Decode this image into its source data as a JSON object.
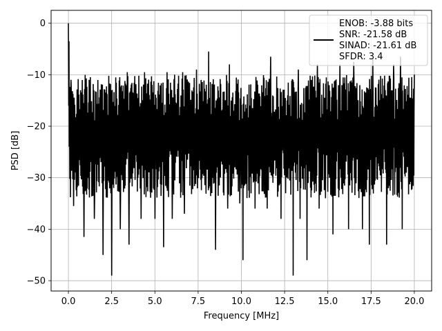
{
  "chart_data": {
    "type": "line",
    "title": "",
    "xlabel": "Frequency [MHz]",
    "ylabel": "PSD [dB]",
    "xlim": [
      -1.0,
      21.0
    ],
    "ylim": [
      -52.0,
      2.5
    ],
    "grid": true,
    "x_ticks": [
      0.0,
      2.5,
      5.0,
      7.5,
      10.0,
      12.5,
      15.0,
      17.5,
      20.0
    ],
    "x_tick_labels": [
      "0.0",
      "2.5",
      "5.0",
      "7.5",
      "10.0",
      "12.5",
      "15.0",
      "17.5",
      "20.0"
    ],
    "y_ticks": [
      0,
      -10,
      -20,
      -30,
      -40,
      -50
    ],
    "y_tick_labels": [
      "0",
      "−10",
      "−20",
      "−30",
      "−40",
      "−50"
    ],
    "legend": {
      "placement": "top-right",
      "entries": [
        "ENOB: -3.88 bits",
        "SNR: -21.58 dB",
        "SINAD: -21.61 dB",
        "SFDR: 3.4"
      ]
    },
    "series": [
      {
        "color": "#000000",
        "x_range": [
          0.0,
          20.0
        ],
        "points": 1200,
        "typical_level_db": -20,
        "upper_envelope_db": -9,
        "lower_peaks": [
          {
            "x": 0.3,
            "y": -35.5
          },
          {
            "x": 0.9,
            "y": -41.5
          },
          {
            "x": 1.5,
            "y": -38
          },
          {
            "x": 2.0,
            "y": -45
          },
          {
            "x": 2.5,
            "y": -49
          },
          {
            "x": 3.0,
            "y": -40
          },
          {
            "x": 3.5,
            "y": -43
          },
          {
            "x": 4.2,
            "y": -38
          },
          {
            "x": 5.0,
            "y": -38
          },
          {
            "x": 5.5,
            "y": -43.5
          },
          {
            "x": 6.0,
            "y": -38
          },
          {
            "x": 6.7,
            "y": -37
          },
          {
            "x": 7.4,
            "y": -35
          },
          {
            "x": 8.5,
            "y": -44
          },
          {
            "x": 9.2,
            "y": -36
          },
          {
            "x": 9.9,
            "y": -35
          },
          {
            "x": 10.1,
            "y": -46
          },
          {
            "x": 10.8,
            "y": -36
          },
          {
            "x": 11.5,
            "y": -36
          },
          {
            "x": 12.3,
            "y": -38
          },
          {
            "x": 13.0,
            "y": -49
          },
          {
            "x": 13.4,
            "y": -38
          },
          {
            "x": 13.8,
            "y": -46
          },
          {
            "x": 14.5,
            "y": -36
          },
          {
            "x": 15.3,
            "y": -41
          },
          {
            "x": 16.2,
            "y": -40
          },
          {
            "x": 17.0,
            "y": -40
          },
          {
            "x": 17.4,
            "y": -43
          },
          {
            "x": 17.6,
            "y": -48.5
          },
          {
            "x": 18.4,
            "y": -43
          },
          {
            "x": 19.3,
            "y": -40
          }
        ],
        "upper_peaks": [
          {
            "x": 0.0,
            "y": 0
          },
          {
            "x": 0.05,
            "y": -3.5
          },
          {
            "x": 0.15,
            "y": -11
          },
          {
            "x": 1.2,
            "y": -11
          },
          {
            "x": 3.4,
            "y": -9.5
          },
          {
            "x": 4.4,
            "y": -9.5
          },
          {
            "x": 5.7,
            "y": -9.5
          },
          {
            "x": 6.6,
            "y": -9.5
          },
          {
            "x": 7.4,
            "y": -9
          },
          {
            "x": 8.1,
            "y": -5.5
          },
          {
            "x": 9.3,
            "y": -8
          },
          {
            "x": 11.7,
            "y": -6.5
          },
          {
            "x": 13.3,
            "y": -9
          },
          {
            "x": 14.4,
            "y": -8
          },
          {
            "x": 15.7,
            "y": -8
          },
          {
            "x": 16.5,
            "y": -7.5
          },
          {
            "x": 17.6,
            "y": -7
          },
          {
            "x": 18.8,
            "y": -8
          },
          {
            "x": 19.2,
            "y": -6.5
          },
          {
            "x": 20.0,
            "y": -10
          }
        ]
      }
    ]
  }
}
